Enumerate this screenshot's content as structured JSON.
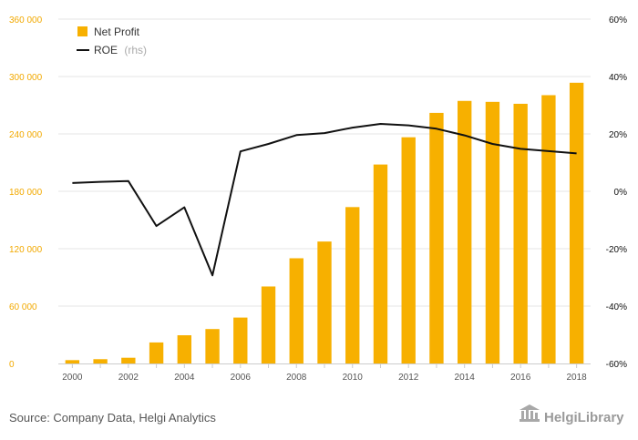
{
  "chart_data": {
    "type": "bar",
    "x": [
      2000,
      2001,
      2002,
      2003,
      2004,
      2005,
      2006,
      2007,
      2008,
      2009,
      2010,
      2011,
      2012,
      2013,
      2014,
      2015,
      2016,
      2017,
      2018
    ],
    "x_tick_labels": [
      "2000",
      "2002",
      "2004",
      "2006",
      "2008",
      "2010",
      "2012",
      "2014",
      "2016",
      "2018"
    ],
    "series": [
      {
        "name": "Net Profit",
        "type": "bar",
        "axis": "left",
        "values": [
          3500,
          4500,
          6000,
          22000,
          29500,
          36000,
          48000,
          80500,
          110000,
          127500,
          163500,
          208000,
          236500,
          262000,
          274500,
          273500,
          271500,
          280500,
          293500
        ]
      },
      {
        "name": "ROE",
        "note": "(rhs)",
        "type": "line",
        "axis": "right",
        "values": [
          2.9,
          3.3,
          3.6,
          -12.1,
          -5.6,
          -29.3,
          13.9,
          16.5,
          19.6,
          20.3,
          22.2,
          23.5,
          23.0,
          21.8,
          19.5,
          16.5,
          14.8,
          14.0,
          13.2
        ]
      }
    ],
    "y_left": {
      "lim": [
        0,
        360000
      ],
      "ticks": [
        0,
        60000,
        120000,
        180000,
        240000,
        300000,
        360000
      ],
      "tick_labels": [
        "0",
        "60 000",
        "120 000",
        "180 000",
        "240 000",
        "300 000",
        "360 000"
      ]
    },
    "y_right": {
      "lim": [
        -60,
        60
      ],
      "ticks": [
        -60,
        -40,
        -20,
        0,
        20,
        40,
        60
      ],
      "tick_labels": [
        "-60%",
        "-40%",
        "-20%",
        "0%",
        "20%",
        "40%",
        "60%"
      ]
    },
    "grid": true,
    "legend": "top-left",
    "title": "",
    "xlabel": "",
    "ylabel": ""
  },
  "colors": {
    "bar": "#f7b000",
    "line": "#111111",
    "grid": "#e6e6e6",
    "left_axis_text": "#f2a900"
  },
  "source": "Source: Company Data, Helgi Analytics",
  "brand": {
    "name": "HelgiLibrary",
    "icon": "library-building-icon"
  }
}
